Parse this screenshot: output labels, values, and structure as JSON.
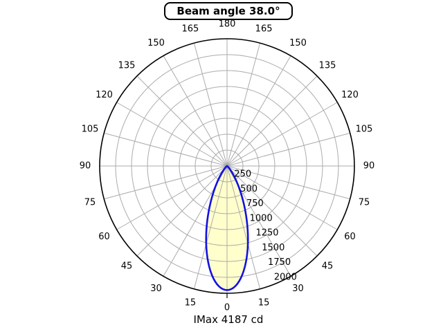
{
  "header": {
    "title": "Beam angle 38.0°"
  },
  "footer": {
    "label": "IMax 4187 cd"
  },
  "chart_data": {
    "type": "line",
    "subtype": "polar-photometric-intensity",
    "title": "Beam angle 38.0°",
    "beam_angle_deg": 38.0,
    "imax_cd": 4187,
    "imax_label": "IMax 4187 cd",
    "theta_zero_position": "bottom",
    "theta_tick_step_deg": 15,
    "theta_labels": [
      0,
      15,
      30,
      45,
      60,
      75,
      90,
      105,
      120,
      135,
      150,
      165,
      180
    ],
    "theta_labels_mirrored_both_sides": true,
    "r_ticks": [
      250,
      500,
      750,
      1000,
      1250,
      1500,
      1750,
      2000
    ],
    "r_max": 2000,
    "r_label_angle_deg": 22.5,
    "grid": true,
    "series": [
      {
        "name": "luminous-intensity-curve",
        "model": "gaussian",
        "fwhm_deg": 38.0,
        "peak_r": 1950,
        "samples_theta_deg": [
          -60,
          -55,
          -50,
          -45,
          -40,
          -35,
          -30,
          -25,
          -20,
          -15,
          -10,
          -5,
          0,
          5,
          10,
          15,
          20,
          25,
          30,
          35,
          40,
          45,
          50,
          55,
          60
        ],
        "samples_r": [
          2,
          6,
          16,
          40,
          90,
          185,
          347,
          587,
          905,
          1266,
          1609,
          1859,
          1950,
          1859,
          1609,
          1266,
          905,
          587,
          347,
          185,
          90,
          40,
          16,
          6,
          2
        ]
      }
    ],
    "colors": {
      "background": "#ffffff",
      "grid": "#ababab",
      "outer_ring": "#000000",
      "curve_stroke": "#1212e0",
      "curve_fill": "#ffffcc",
      "text": "#000000"
    }
  }
}
